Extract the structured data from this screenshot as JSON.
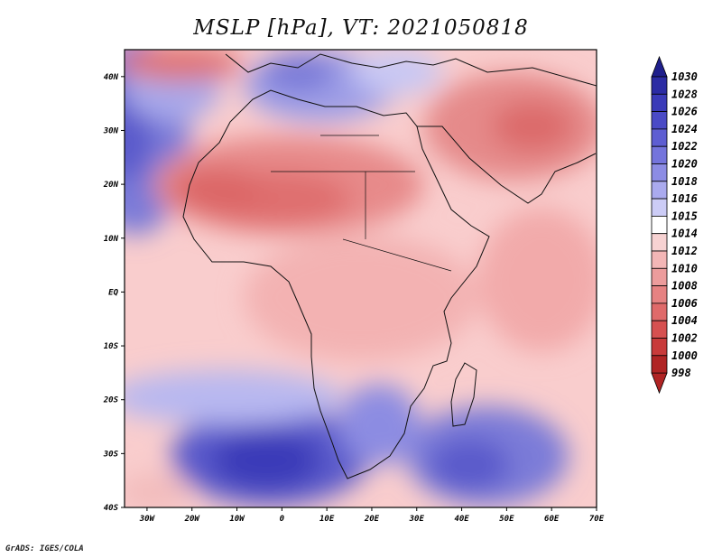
{
  "title": "MSLP [hPa], VT: 2021050818",
  "credit": "GrADS: IGES/COLA",
  "map": {
    "lon_range": [
      -30,
      75
    ],
    "lat_range": [
      -40,
      45
    ],
    "lon_ticks": [
      "30W",
      "20W",
      "10W",
      "0",
      "10E",
      "20E",
      "30E",
      "40E",
      "50E",
      "60E",
      "70E"
    ],
    "lat_ticks": [
      "40N",
      "30N",
      "20N",
      "10N",
      "EQ",
      "10S",
      "20S",
      "30S",
      "40S"
    ]
  },
  "colorbar": {
    "labels": [
      "1030",
      "1028",
      "1026",
      "1024",
      "1022",
      "1020",
      "1018",
      "1016",
      "1015",
      "1014",
      "1012",
      "1010",
      "1008",
      "1006",
      "1004",
      "1002",
      "1000",
      "998"
    ],
    "colors": [
      "#1f1f8c",
      "#2b2ba4",
      "#3a3ab8",
      "#4a4ac6",
      "#5e5ed2",
      "#7474dc",
      "#8c8ce4",
      "#aaaaee",
      "#ccccf6",
      "#ffffff",
      "#f7d2d2",
      "#f3b6b6",
      "#ec9c9c",
      "#e68282",
      "#df6a6a",
      "#d65050",
      "#c83a3a",
      "#b02424"
    ]
  }
}
